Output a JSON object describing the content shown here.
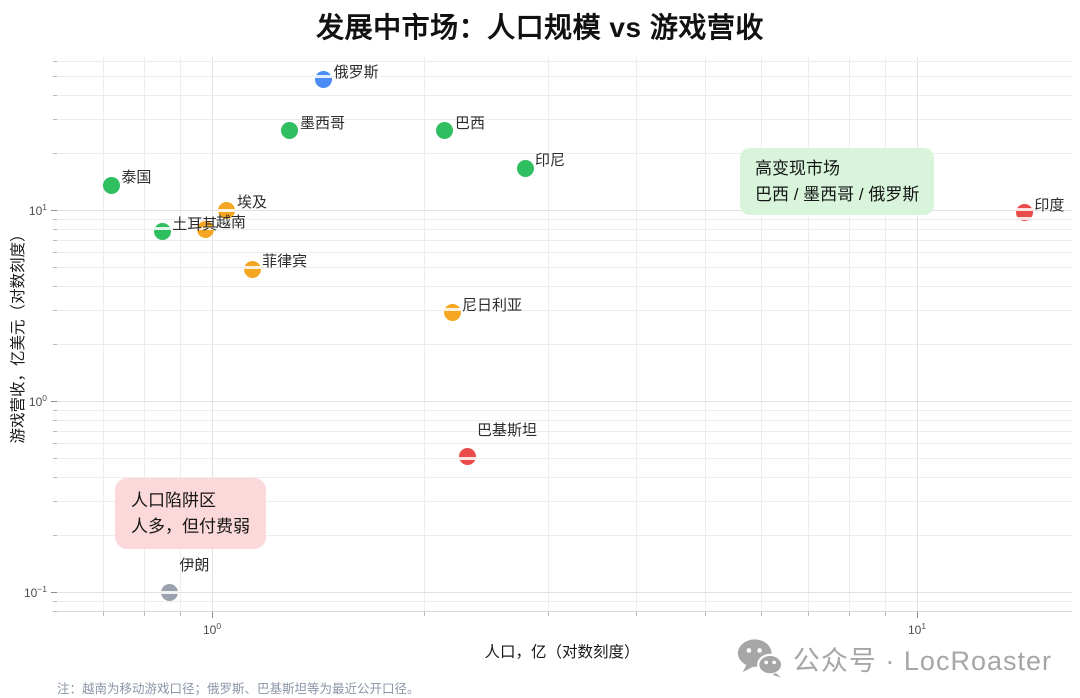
{
  "title": "发展中市场：人口规模 vs 游戏营收",
  "chart_data": {
    "type": "scatter",
    "x_axis": {
      "label": "人口，亿（对数刻度）",
      "scale": "log",
      "range": [
        0.6,
        16.6
      ],
      "major_ticks": [
        1,
        10
      ],
      "minor_ticks": [
        0.7,
        0.8,
        0.9,
        2,
        3,
        4,
        5,
        6,
        7,
        8,
        9
      ]
    },
    "y_axis": {
      "label": "游戏营收，亿美元（对数刻度）",
      "scale": "log",
      "range": [
        0.077,
        64
      ],
      "major_ticks": [
        0.1,
        1,
        10
      ],
      "minor_ticks": [
        0.08,
        0.09,
        0.2,
        0.3,
        0.4,
        0.5,
        0.6,
        0.7,
        0.8,
        0.9,
        2,
        3,
        4,
        5,
        6,
        7,
        8,
        9,
        20,
        30,
        40,
        50,
        60
      ]
    },
    "points": [
      {
        "name": "俄罗斯",
        "x": 1.44,
        "y": 48,
        "group": "blue"
      },
      {
        "name": "墨西哥",
        "x": 1.29,
        "y": 26,
        "group": "green"
      },
      {
        "name": "巴西",
        "x": 2.14,
        "y": 26,
        "group": "green"
      },
      {
        "name": "印尼",
        "x": 2.78,
        "y": 16.5,
        "group": "green"
      },
      {
        "name": "泰国",
        "x": 0.72,
        "y": 13.5,
        "group": "green"
      },
      {
        "name": "埃及",
        "x": 1.05,
        "y": 10,
        "group": "orange"
      },
      {
        "name": "土耳其",
        "x": 0.85,
        "y": 7.7,
        "group": "green"
      },
      {
        "name": "越南",
        "x": 0.98,
        "y": 7.9,
        "group": "orange"
      },
      {
        "name": "菲律宾",
        "x": 1.14,
        "y": 4.9,
        "group": "orange"
      },
      {
        "name": "尼日利亚",
        "x": 2.19,
        "y": 2.9,
        "group": "orange"
      },
      {
        "name": "印度",
        "x": 14.2,
        "y": 9.7,
        "group": "red"
      },
      {
        "name": "巴基斯坦",
        "x": 2.3,
        "y": 0.51,
        "group": "red"
      },
      {
        "name": "伊朗",
        "x": 0.87,
        "y": 0.1,
        "group": "gray"
      }
    ],
    "colors": {
      "blue": "#4b8bf5",
      "green": "#2fbe60",
      "orange": "#f5a623",
      "red": "#ea4c4c",
      "gray": "#9aa3ad"
    },
    "annotations": [
      {
        "id": "high-monetization",
        "lines": [
          "高变现市场",
          "巴西 / 墨西哥 / 俄罗斯"
        ],
        "bg": "#d8f5dc"
      },
      {
        "id": "population-trap",
        "lines": [
          "人口陷阱区",
          "人多，但付费弱"
        ],
        "bg": "#fbd8da"
      }
    ],
    "grid": true,
    "legend": "none"
  },
  "footer": {
    "note": "注：越南为移动游戏口径；俄罗斯、巴基斯坦等为最近公开口径。"
  },
  "watermark": {
    "icon": "wechat-icon",
    "text": "公众号 · LocRoaster"
  }
}
